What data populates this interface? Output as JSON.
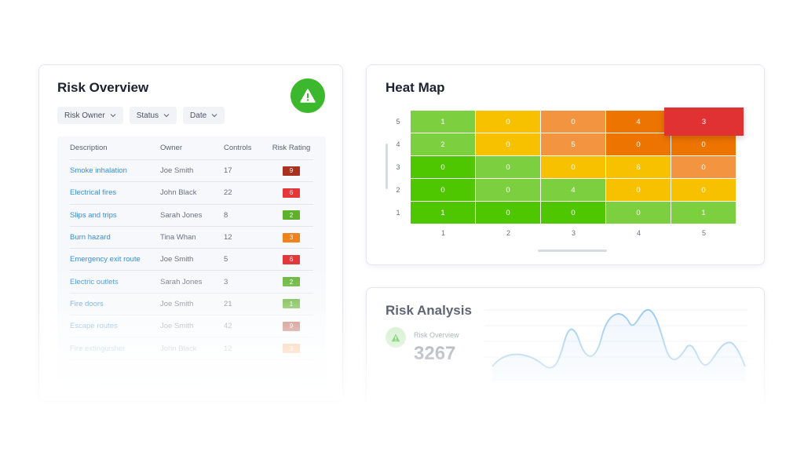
{
  "risk_overview": {
    "title": "Risk Overview",
    "filters": [
      "Risk Owner",
      "Status",
      "Date"
    ],
    "columns": [
      "Description",
      "Owner",
      "Controls",
      "Risk Rating"
    ],
    "rows": [
      {
        "description": "Smoke inhalation",
        "owner": "Joe Smith",
        "controls": "17",
        "rating": "9",
        "color": "#a8311f"
      },
      {
        "description": "Electrical fires",
        "owner": "John Black",
        "controls": "22",
        "rating": "6",
        "color": "#e2383a"
      },
      {
        "description": "Slips and trips",
        "owner": "Sarah Jones",
        "controls": "8",
        "rating": "2",
        "color": "#5fb02c"
      },
      {
        "description": "Burn hazard",
        "owner": "Tina Whan",
        "controls": "12",
        "rating": "3",
        "color": "#f0821e"
      },
      {
        "description": "Emergency exit route",
        "owner": "Joe Smith",
        "controls": "5",
        "rating": "6",
        "color": "#e2383a"
      },
      {
        "description": "Electric outlets",
        "owner": "Sarah Jones",
        "controls": "3",
        "rating": "2",
        "color": "#5fb02c"
      },
      {
        "description": "Fire doors",
        "owner": "Joe Smith",
        "controls": "21",
        "rating": "1",
        "color": "#5fb02c"
      },
      {
        "description": "Escape routes",
        "owner": "Joe Smith",
        "controls": "42",
        "rating": "9",
        "color": "#a8311f"
      },
      {
        "description": "Fire extinguisher",
        "owner": "John Black",
        "controls": "12",
        "rating": "3",
        "color": "#f0821e"
      }
    ]
  },
  "heat_map": {
    "title": "Heat Map",
    "y_labels": [
      "5",
      "4",
      "3",
      "2",
      "1"
    ],
    "x_labels": [
      "1",
      "2",
      "3",
      "4",
      "5"
    ],
    "grid": [
      [
        "1",
        "0",
        "0",
        "4",
        "3"
      ],
      [
        "2",
        "0",
        "5",
        "0",
        "0"
      ],
      [
        "0",
        "0",
        "0",
        "6",
        "0"
      ],
      [
        "0",
        "0",
        "4",
        "0",
        "0"
      ],
      [
        "1",
        "0",
        "0",
        "0",
        "1"
      ]
    ],
    "colors": [
      [
        "#7ccf3e",
        "#f7c100",
        "#f39540",
        "#ee7400",
        "#e03232"
      ],
      [
        "#7ccf3e",
        "#f7c100",
        "#f39540",
        "#ee7400",
        "#ee7400"
      ],
      [
        "#4ec600",
        "#7ccf3e",
        "#f7c100",
        "#f7c100",
        "#f39540"
      ],
      [
        "#4ec600",
        "#7ccf3e",
        "#7ccf3e",
        "#f7c100",
        "#f7c100"
      ],
      [
        "#4ec600",
        "#4ec600",
        "#4ec600",
        "#7ccf3e",
        "#7ccf3e"
      ]
    ]
  },
  "risk_analysis": {
    "title": "Risk Analysis",
    "kpi_label": "Risk Overview",
    "kpi_value": "3267"
  }
}
